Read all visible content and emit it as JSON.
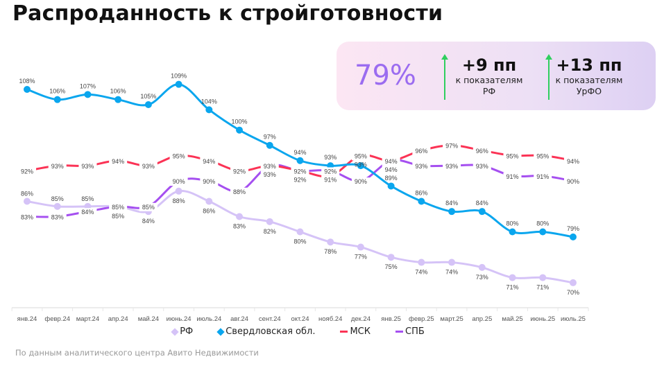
{
  "title": "Распроданность к стройготовности",
  "card": {
    "value": "79%",
    "stats": [
      {
        "value": "+9 пп",
        "caption1": "к показателям",
        "caption2": "РФ"
      },
      {
        "value": "+13 пп",
        "caption1": "к показателям",
        "caption2": "УрФО"
      }
    ]
  },
  "footnote": "По данным аналитического центра Авито Недвижимости",
  "chart_data": {
    "type": "line",
    "categories": [
      "янв.24",
      "февр.24",
      "март.24",
      "апр.24",
      "май.24",
      "июнь.24",
      "июль.24",
      "авг.24",
      "сент.24",
      "окт.24",
      "нояб.24",
      "дек.24",
      "янв.25",
      "февр.25",
      "март.25",
      "апр.25",
      "май.25",
      "июнь.25",
      "июль.25"
    ],
    "unit": "%",
    "series": [
      {
        "name": "РФ",
        "color": "#d5c3f7",
        "markers": true,
        "values": [
          86,
          85,
          85,
          85,
          84,
          88,
          86,
          83,
          82,
          80,
          78,
          77,
          75,
          74,
          74,
          73,
          71,
          71,
          70
        ]
      },
      {
        "name": "Свердловская обл.",
        "color": "#0aa6ee",
        "markers": true,
        "values": [
          108,
          106,
          107,
          106,
          105,
          109,
          104,
          100,
          97,
          94,
          93,
          93,
          89,
          86,
          84,
          84,
          80,
          80,
          79
        ]
      },
      {
        "name": "МСК",
        "color": "#fb3355",
        "markers": false,
        "values": [
          92,
          93,
          93,
          94,
          93,
          95,
          94,
          92,
          93,
          92,
          91,
          95,
          94,
          96,
          97,
          96,
          95,
          95,
          94
        ]
      },
      {
        "name": "СПБ",
        "color": "#a54ff0",
        "markers": false,
        "values": [
          83,
          83,
          84,
          85,
          85,
          90,
          90,
          88,
          93,
          92,
          92,
          90,
          94,
          93,
          93,
          93,
          91,
          91,
          90
        ]
      }
    ],
    "grid": false,
    "legend": "bottom"
  }
}
